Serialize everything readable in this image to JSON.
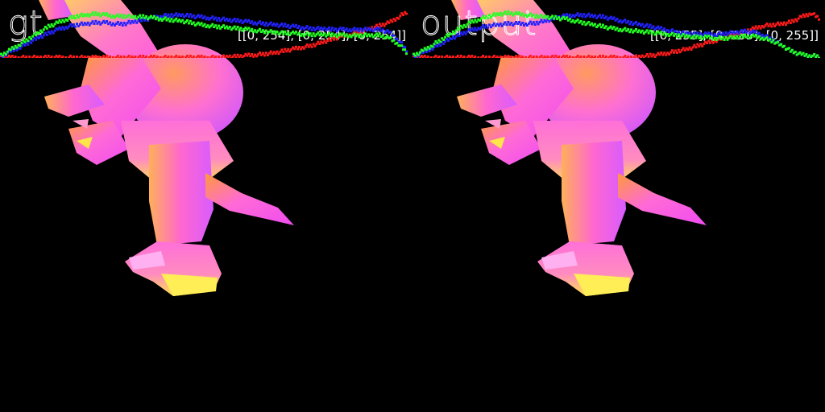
{
  "panels": [
    {
      "title": "gt",
      "range": "[[0, 254], [0, 254], [0, 254]]",
      "histogram": {
        "red": [
          0,
          0,
          0,
          0,
          0,
          0,
          0,
          0,
          0,
          0,
          0,
          0,
          0,
          0,
          0,
          0,
          0,
          0,
          0,
          0,
          0,
          0,
          0,
          0,
          1,
          1,
          2,
          3,
          4,
          5,
          7,
          9,
          11,
          13,
          16,
          19,
          22,
          24,
          27,
          30,
          33,
          36,
          42,
          48
        ],
        "green": [
          2,
          8,
          14,
          20,
          26,
          32,
          36,
          40,
          43,
          44,
          45,
          44,
          43,
          43,
          42,
          42,
          41,
          40,
          39,
          38,
          36,
          34,
          33,
          32,
          31,
          30,
          29,
          28,
          27,
          26,
          25,
          25,
          24,
          24,
          24,
          23,
          23,
          23,
          23,
          23,
          23,
          20,
          14,
          4
        ],
        "blue": [
          1,
          6,
          11,
          16,
          21,
          25,
          29,
          32,
          34,
          35,
          36,
          36,
          35,
          35,
          37,
          39,
          41,
          43,
          44,
          44,
          43,
          42,
          41,
          40,
          39,
          38,
          37,
          36,
          35,
          34,
          33,
          32,
          31,
          30,
          30,
          29,
          29,
          29,
          29,
          29,
          29,
          26,
          18,
          6
        ]
      }
    },
    {
      "title": "output",
      "range": "[[0, 255], [0, 255], [0, 255]]",
      "histogram": {
        "red": [
          0,
          0,
          0,
          0,
          0,
          0,
          0,
          0,
          0,
          0,
          0,
          0,
          0,
          0,
          0,
          0,
          0,
          0,
          0,
          0,
          0,
          0,
          0,
          0,
          1,
          2,
          3,
          5,
          7,
          9,
          12,
          15,
          18,
          21,
          24,
          27,
          30,
          33,
          34,
          35,
          37,
          42,
          46,
          40
        ],
        "green": [
          2,
          7,
          13,
          19,
          25,
          31,
          36,
          40,
          43,
          45,
          46,
          45,
          44,
          43,
          42,
          41,
          40,
          38,
          36,
          34,
          32,
          30,
          29,
          28,
          27,
          26,
          25,
          24,
          23,
          22,
          21,
          21,
          20,
          20,
          21,
          22,
          22,
          20,
          17,
          12,
          6,
          3,
          2,
          1
        ],
        "blue": [
          1,
          5,
          10,
          15,
          20,
          24,
          28,
          31,
          33,
          34,
          35,
          35,
          35,
          36,
          38,
          41,
          43,
          44,
          44,
          43,
          42,
          40,
          38,
          36,
          34,
          32,
          30,
          28,
          26,
          25,
          24,
          24,
          24,
          25,
          26,
          27,
          26,
          23,
          18,
          12,
          6,
          3,
          2,
          1
        ]
      }
    }
  ],
  "colors": {
    "red": "#ff1a1a",
    "green": "#22ff22",
    "blue": "#2222ff",
    "background": "#000000",
    "text": "#ffffff"
  }
}
